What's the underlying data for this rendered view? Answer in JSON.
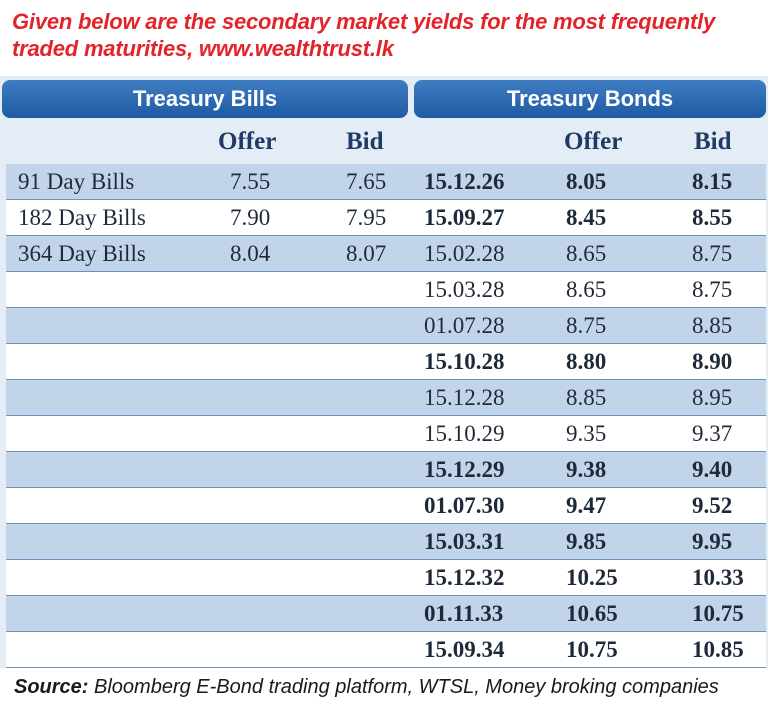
{
  "caption": {
    "line1": "Given below are the secondary market yields for the most frequently",
    "line2": "traded maturities, www.wealthtrust.lk"
  },
  "bills": {
    "title": "Treasury Bills",
    "offer_label": "Offer",
    "bid_label": "Bid",
    "rows": [
      {
        "name": "91 Day Bills",
        "offer": "7.55",
        "bid": "7.65"
      },
      {
        "name": "182 Day Bills",
        "offer": "7.90",
        "bid": "7.95"
      },
      {
        "name": "364 Day Bills",
        "offer": "8.04",
        "bid": "8.07"
      }
    ]
  },
  "bonds": {
    "title": "Treasury Bonds",
    "offer_label": "Offer",
    "bid_label": "Bid",
    "rows": [
      {
        "maturity": "15.12.26",
        "offer": "8.05",
        "bid": "8.15",
        "bold": true
      },
      {
        "maturity": "15.09.27",
        "offer": "8.45",
        "bid": "8.55",
        "bold": true
      },
      {
        "maturity": "15.02.28",
        "offer": "8.65",
        "bid": "8.75",
        "bold": false
      },
      {
        "maturity": "15.03.28",
        "offer": "8.65",
        "bid": "8.75",
        "bold": false
      },
      {
        "maturity": "01.07.28",
        "offer": "8.75",
        "bid": "8.85",
        "bold": false
      },
      {
        "maturity": "15.10.28",
        "offer": "8.80",
        "bid": "8.90",
        "bold": true
      },
      {
        "maturity": "15.12.28",
        "offer": "8.85",
        "bid": "8.95",
        "bold": false
      },
      {
        "maturity": "15.10.29",
        "offer": "9.35",
        "bid": "9.37",
        "bold": false
      },
      {
        "maturity": "15.12.29",
        "offer": "9.38",
        "bid": "9.40",
        "bold": true
      },
      {
        "maturity": "01.07.30",
        "offer": "9.47",
        "bid": "9.52",
        "bold": true
      },
      {
        "maturity": "15.03.31",
        "offer": "9.85",
        "bid": "9.95",
        "bold": true
      },
      {
        "maturity": "15.12.32",
        "offer": "10.25",
        "bid": "10.33",
        "bold": true
      },
      {
        "maturity": "01.11.33",
        "offer": "10.65",
        "bid": "10.75",
        "bold": true
      },
      {
        "maturity": "15.09.34",
        "offer": "10.75",
        "bid": "10.85",
        "bold": true
      }
    ]
  },
  "source": {
    "label": "Source:",
    "text": " Bloomberg E-Bond trading platform, WTSL, Money broking companies"
  },
  "colors": {
    "caption": "#e2232a",
    "header": "#2a68b0",
    "stripe": "#c2d4ea"
  }
}
